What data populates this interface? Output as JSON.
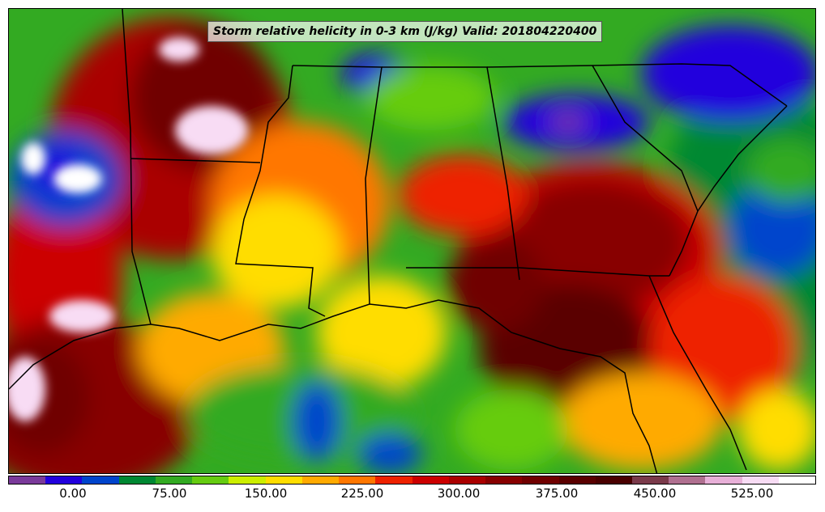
{
  "title": "Storm relative helicity in 0-3 km (J/kg) Valid: 201804220400",
  "colorbar": {
    "colors": [
      "#7a3a9a",
      "#2200dd",
      "#0044cc",
      "#008833",
      "#33aa22",
      "#66cc11",
      "#ccee00",
      "#ffdd00",
      "#ffaa00",
      "#ff7700",
      "#ee2200",
      "#cc0000",
      "#aa0000",
      "#880000",
      "#700000",
      "#5a0000",
      "#4a0000",
      "#7a3a4a",
      "#b07090",
      "#e8b0d8",
      "#f8dcf4",
      "#ffffff"
    ],
    "tick_labels": [
      "0.00",
      "75.00",
      "150.00",
      "225.00",
      "300.00",
      "375.00",
      "450.00",
      "525.00"
    ]
  },
  "icons": {
    "map": "helicity-field-map",
    "boundaries": "state-boundaries"
  }
}
